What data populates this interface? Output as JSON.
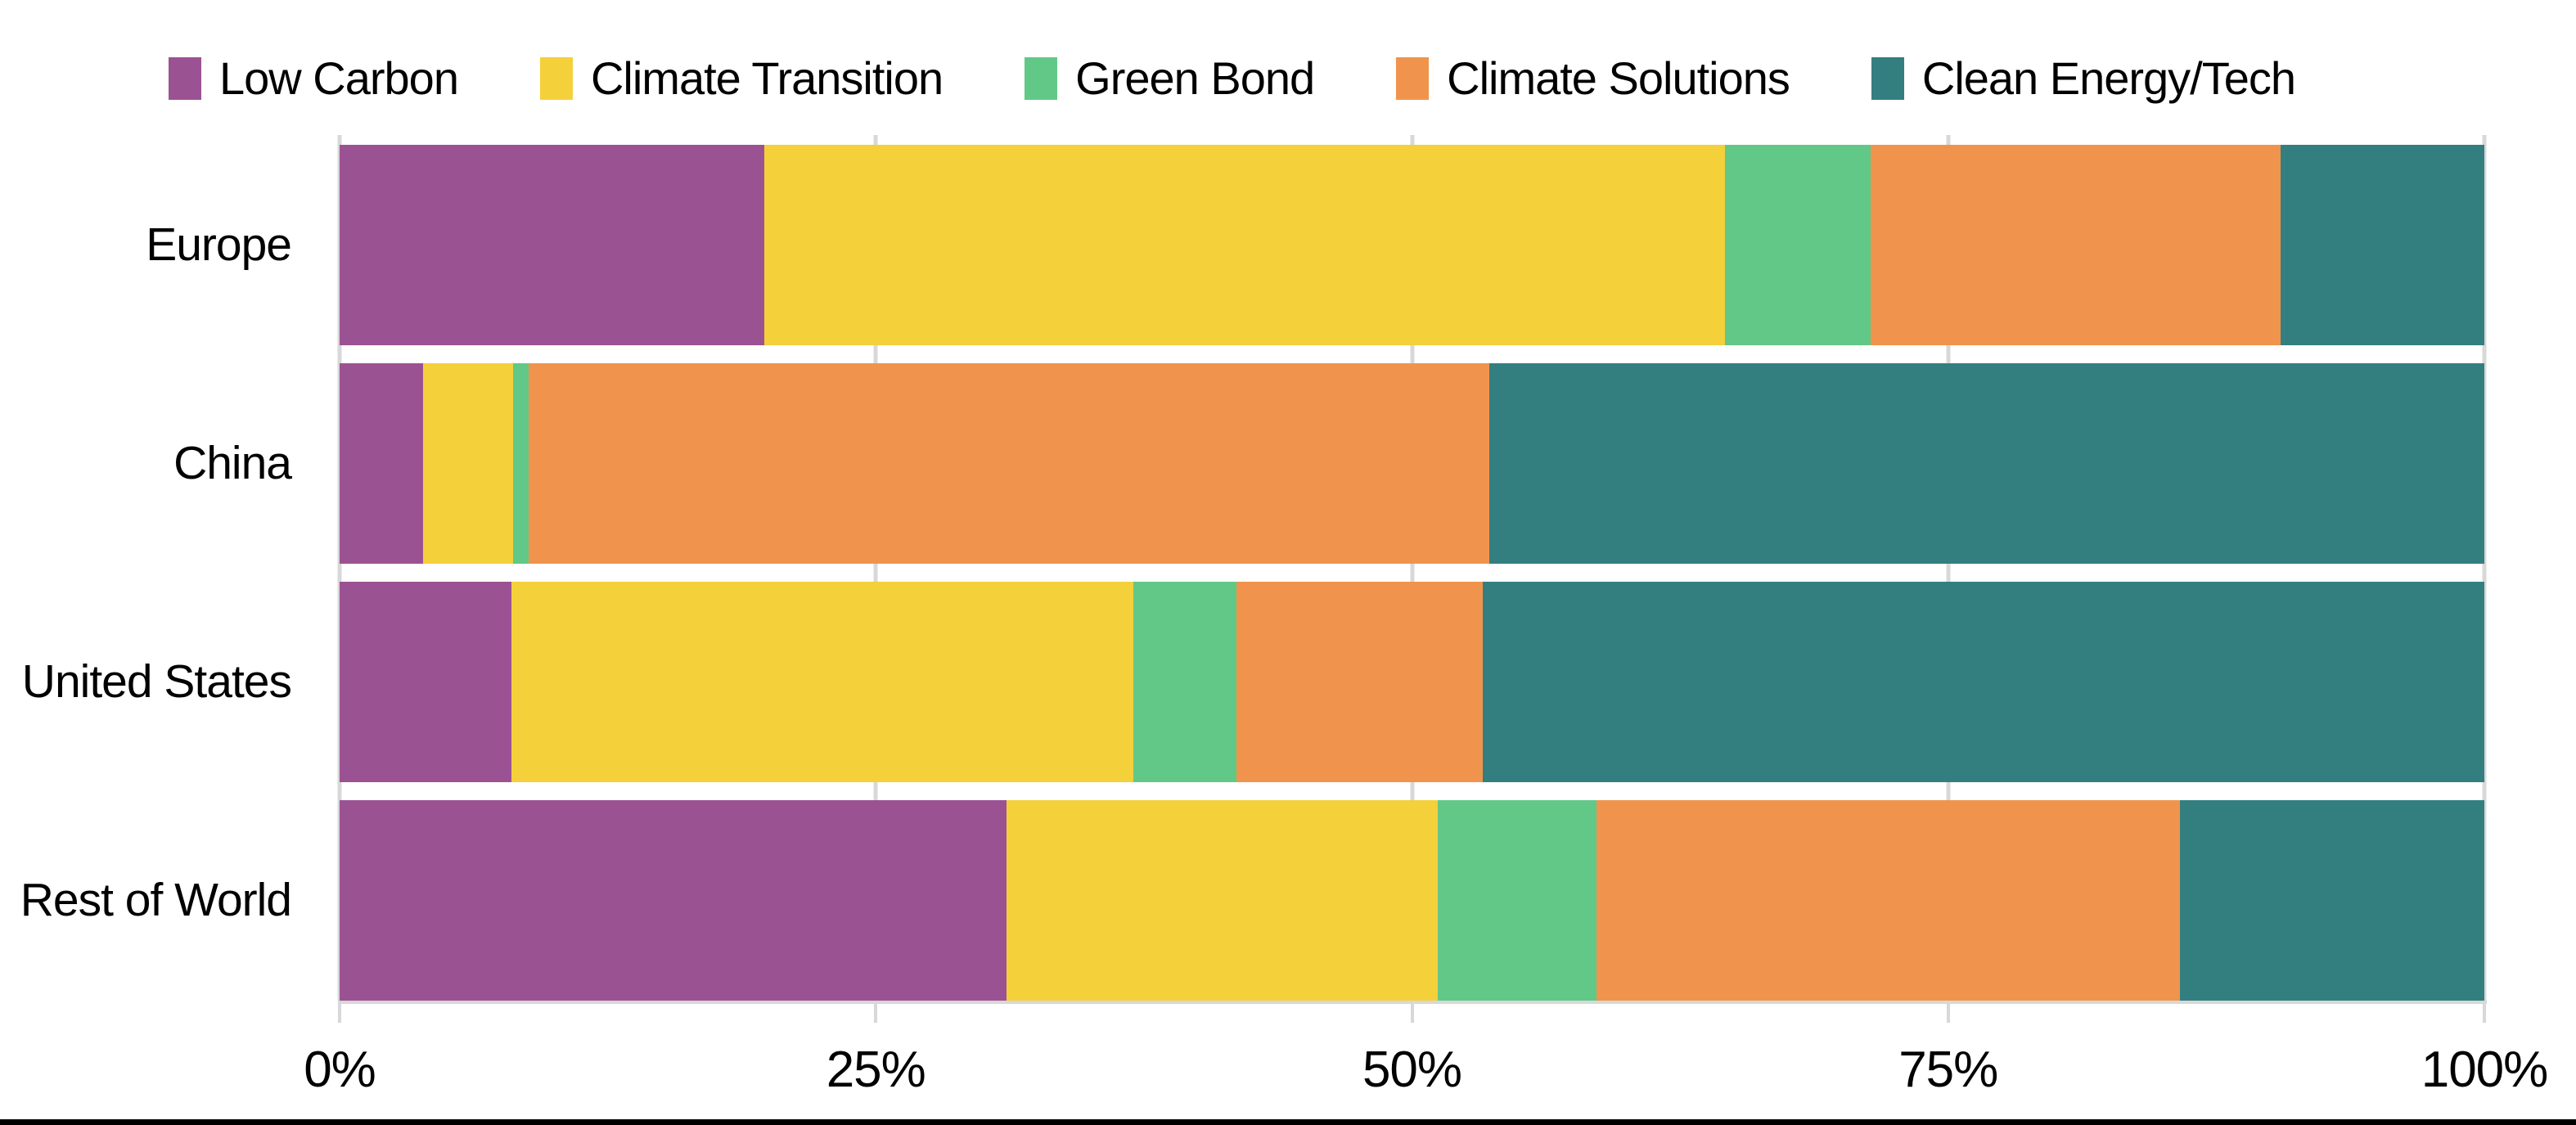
{
  "chart_data": {
    "type": "bar",
    "variant": "horizontal-stacked-100pct",
    "title": "",
    "xlabel": "",
    "ylabel": "",
    "categories": [
      "Europe",
      "China",
      "United States",
      "Rest of World"
    ],
    "series": [
      {
        "name": "Low Carbon",
        "color": "#9b5292",
        "values": [
          19.8,
          3.9,
          8.0,
          31.1
        ]
      },
      {
        "name": "Climate Transition",
        "color": "#f4d03b",
        "values": [
          44.8,
          4.2,
          29.0,
          20.1
        ]
      },
      {
        "name": "Green Bond",
        "color": "#61c887",
        "values": [
          6.8,
          0.7,
          4.8,
          7.4
        ]
      },
      {
        "name": "Climate Solutions",
        "color": "#f0944d",
        "values": [
          19.1,
          44.8,
          11.5,
          27.2
        ]
      },
      {
        "name": "Clean Energy/Tech",
        "color": "#337f80",
        "values": [
          9.5,
          46.4,
          46.7,
          14.2
        ]
      }
    ],
    "x_axis": {
      "tick_labels": [
        "0%",
        "25%",
        "50%",
        "75%",
        "100%"
      ],
      "tick_values": [
        0,
        25,
        50,
        75,
        100
      ],
      "range": [
        0,
        100
      ]
    },
    "legend_position": "top",
    "grid": "vertical"
  },
  "colors": {
    "background": "#ffffff",
    "gridline": "#d8d8d8",
    "axis": "#d8d8d8",
    "text": "#000000",
    "bottom_border": "#000000"
  }
}
